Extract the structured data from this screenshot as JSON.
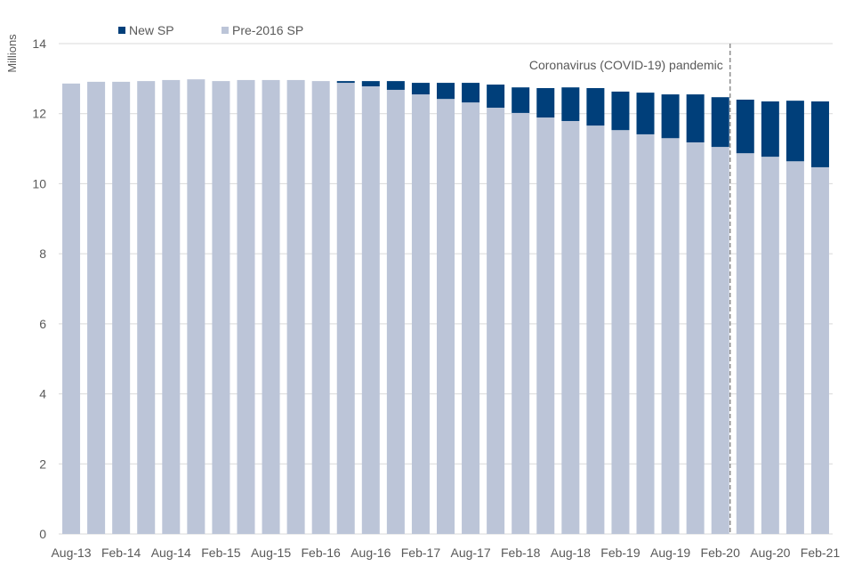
{
  "chart_data": {
    "type": "bar",
    "stacked": true,
    "title": "",
    "xlabel": "",
    "ylabel": "Millions",
    "ylim": [
      0,
      14
    ],
    "yticks": [
      0,
      2,
      4,
      6,
      8,
      10,
      12,
      14
    ],
    "grid": true,
    "legend_position": "top-left",
    "categories": [
      "Aug-13",
      "Nov-13",
      "Feb-14",
      "May-14",
      "Aug-14",
      "Nov-14",
      "Feb-15",
      "May-15",
      "Aug-15",
      "Nov-15",
      "Feb-16",
      "May-16",
      "Aug-16",
      "Nov-16",
      "Feb-17",
      "May-17",
      "Aug-17",
      "Nov-17",
      "Feb-18",
      "May-18",
      "Aug-18",
      "Nov-18",
      "Feb-19",
      "May-19",
      "Aug-19",
      "Nov-19",
      "Feb-20",
      "May-20",
      "Aug-20",
      "Nov-20",
      "Feb-21"
    ],
    "tick_labels": [
      "Aug-13",
      "Feb-14",
      "Aug-14",
      "Feb-15",
      "Aug-15",
      "Feb-16",
      "Aug-16",
      "Feb-17",
      "Aug-17",
      "Feb-18",
      "Aug-18",
      "Feb-19",
      "Aug-19",
      "Feb-20",
      "Aug-20",
      "Feb-21"
    ],
    "series": [
      {
        "name": "Pre-2016 SP",
        "color": "#bcc5d8",
        "values": [
          12.86,
          12.91,
          12.91,
          12.93,
          12.96,
          12.98,
          12.93,
          12.96,
          12.96,
          12.96,
          12.93,
          12.88,
          12.78,
          12.68,
          12.55,
          12.42,
          12.32,
          12.17,
          12.02,
          11.89,
          11.79,
          11.66,
          11.53,
          11.41,
          11.3,
          11.18,
          11.05,
          10.87,
          10.77,
          10.64,
          10.47
        ]
      },
      {
        "name": "New SP",
        "color": "#003f7a",
        "values": [
          0,
          0,
          0,
          0,
          0,
          0,
          0,
          0,
          0,
          0,
          0,
          0.05,
          0.15,
          0.25,
          0.33,
          0.46,
          0.56,
          0.66,
          0.73,
          0.84,
          0.96,
          1.07,
          1.1,
          1.19,
          1.25,
          1.37,
          1.42,
          1.53,
          1.58,
          1.73,
          1.88
        ]
      }
    ],
    "legend": [
      "New SP",
      "Pre-2016 SP"
    ],
    "annotation": {
      "text": "Coronavirus (COVID-19) pandemic",
      "after_category": "Feb-20",
      "style": "dashed vertical line"
    }
  }
}
